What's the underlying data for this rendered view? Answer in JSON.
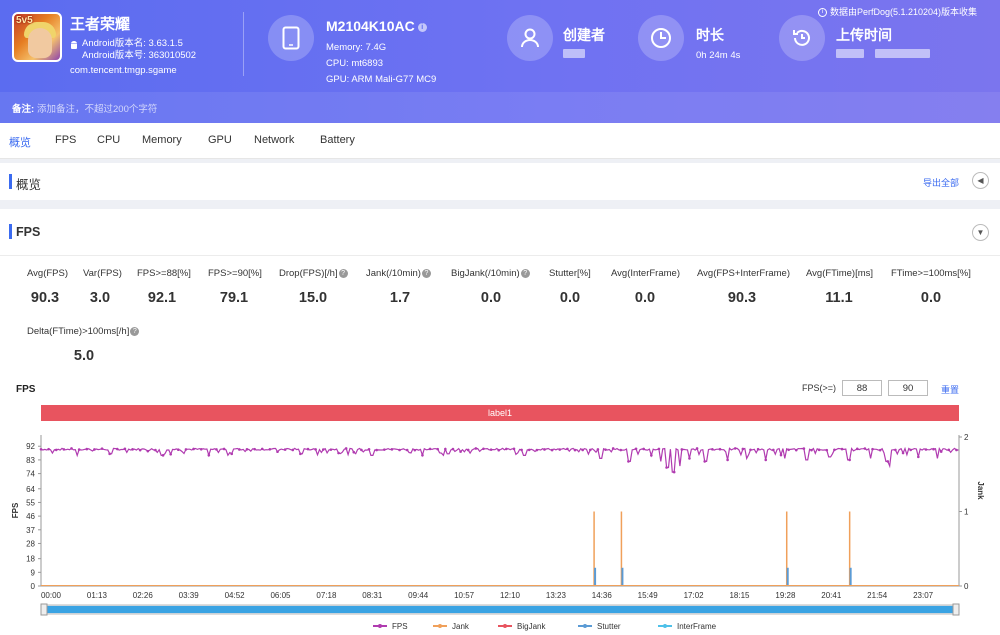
{
  "app": {
    "name": "王者荣耀",
    "icon_badge": "5v5",
    "version_name": "Android版本名: 3.63.1.5",
    "version_code": "Android版本号: 363010502",
    "package": "com.tencent.tmgp.sgame"
  },
  "device": {
    "model": "M2104K10AC",
    "memory": "Memory: 7.4G",
    "cpu": "CPU: mt6893",
    "gpu": "GPU: ARM Mali-G77 MC9"
  },
  "creator": {
    "label": "创建者"
  },
  "duration": {
    "label": "时长",
    "value": "0h 24m 4s"
  },
  "upload": {
    "label": "上传时间"
  },
  "version_note": "数据由PerfDog(5.1.210204)版本收集",
  "remark": {
    "label": "备注:",
    "placeholder": "添加备注，不超过200个字符"
  },
  "tabs": [
    "概览",
    "FPS",
    "CPU",
    "Memory",
    "GPU",
    "Network",
    "Battery"
  ],
  "overview": {
    "title": "概览",
    "export_label": "导出全部"
  },
  "fps_section": {
    "title": "FPS",
    "stats": [
      {
        "label": "Avg(FPS)",
        "value": "90.3",
        "help": false
      },
      {
        "label": "Var(FPS)",
        "value": "3.0",
        "help": false
      },
      {
        "label": "FPS>=88[%]",
        "value": "92.1",
        "help": false
      },
      {
        "label": "FPS>=90[%]",
        "value": "79.1",
        "help": false
      },
      {
        "label": "Drop(FPS)[/h]",
        "value": "15.0",
        "help": true
      },
      {
        "label": "Jank(/10min)",
        "value": "1.7",
        "help": true
      },
      {
        "label": "BigJank(/10min)",
        "value": "0.0",
        "help": true
      },
      {
        "label": "Stutter[%]",
        "value": "0.0",
        "help": false
      },
      {
        "label": "Avg(InterFrame)",
        "value": "0.0",
        "help": false
      },
      {
        "label": "Avg(FPS+InterFrame)",
        "value": "90.3",
        "help": false
      },
      {
        "label": "Avg(FTime)[ms]",
        "value": "11.1",
        "help": false
      },
      {
        "label": "FTime>=100ms[%]",
        "value": "0.0",
        "help": false
      },
      {
        "label": "Delta(FTime)>100ms[/h]",
        "value": "5.0",
        "help": true
      }
    ],
    "chart_title": "FPS",
    "threshold_label": "FPS(>=)",
    "threshold_low": "88",
    "threshold_high": "90",
    "reset_label": "重置",
    "band_label": "label1"
  },
  "chart_data": {
    "type": "line",
    "title": "FPS",
    "ylabel": "FPS",
    "y2label": "Jank",
    "yticks": [
      0,
      9,
      18,
      28,
      37,
      46,
      55,
      64,
      74,
      83,
      92
    ],
    "y2ticks": [
      0,
      1,
      2
    ],
    "ylim": [
      0,
      100
    ],
    "y2lim": [
      0,
      2
    ],
    "xticks": [
      "00:00",
      "01:13",
      "02:26",
      "03:39",
      "04:52",
      "06:05",
      "07:18",
      "08:31",
      "09:44",
      "10:57",
      "12:10",
      "13:23",
      "14:36",
      "15:49",
      "17:02",
      "18:15",
      "19:28",
      "20:41",
      "21:54",
      "23:07"
    ],
    "duration_seconds": 1444,
    "series": [
      {
        "name": "FPS",
        "color": "#b03bb0",
        "baseline": 90,
        "dips": [
          {
            "t": 57,
            "v": 86
          },
          {
            "t": 110,
            "v": 87
          },
          {
            "t": 190,
            "v": 86
          },
          {
            "t": 300,
            "v": 87
          },
          {
            "t": 410,
            "v": 87
          },
          {
            "t": 520,
            "v": 86
          },
          {
            "t": 640,
            "v": 87
          },
          {
            "t": 760,
            "v": 86
          },
          {
            "t": 880,
            "v": 84
          },
          {
            "t": 925,
            "v": 82
          },
          {
            "t": 960,
            "v": 86
          },
          {
            "t": 975,
            "v": 82
          },
          {
            "t": 985,
            "v": 78
          },
          {
            "t": 995,
            "v": 75
          },
          {
            "t": 1005,
            "v": 79
          },
          {
            "t": 1020,
            "v": 84
          },
          {
            "t": 1045,
            "v": 82
          },
          {
            "t": 1080,
            "v": 83
          },
          {
            "t": 1110,
            "v": 84
          },
          {
            "t": 1140,
            "v": 83
          },
          {
            "t": 1170,
            "v": 84
          },
          {
            "t": 1205,
            "v": 83
          },
          {
            "t": 1240,
            "v": 85
          },
          {
            "t": 1270,
            "v": 83
          },
          {
            "t": 1305,
            "v": 84
          },
          {
            "t": 1330,
            "v": 82
          },
          {
            "t": 1335,
            "v": 79
          },
          {
            "t": 1380,
            "v": 85
          },
          {
            "t": 1410,
            "v": 84
          }
        ]
      },
      {
        "name": "Jank",
        "color": "#f0a05a",
        "events": [
          {
            "t": 870,
            "v": 1
          },
          {
            "t": 913,
            "v": 1
          },
          {
            "t": 1173,
            "v": 1
          },
          {
            "t": 1272,
            "v": 1
          }
        ]
      },
      {
        "name": "BigJank",
        "color": "#e8545f",
        "events": []
      },
      {
        "name": "Stutter",
        "color": "#5b9bd5",
        "events": [
          {
            "t": 870,
            "v": 0.2
          },
          {
            "t": 913,
            "v": 0.2
          },
          {
            "t": 1173,
            "v": 0.2
          },
          {
            "t": 1272,
            "v": 0.2
          }
        ]
      },
      {
        "name": "InterFrame",
        "color": "#4fc1e9",
        "events": []
      }
    ],
    "legend_position": "bottom"
  },
  "colors": {
    "header": "#5b6cf0",
    "accent": "#3b6bf0",
    "band": "#e8545f",
    "scrollbar": "#3aa3e3"
  }
}
